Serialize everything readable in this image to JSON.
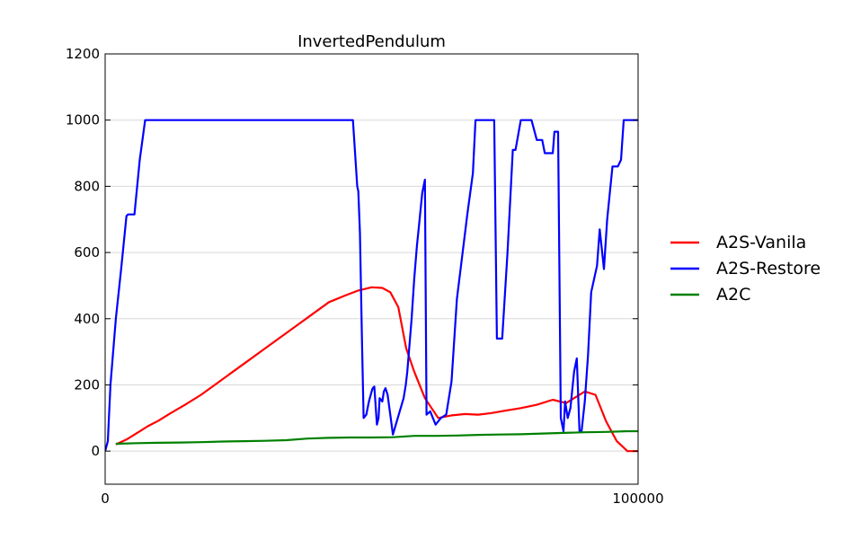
{
  "chart_data": {
    "type": "line",
    "title": "InvertedPendulum",
    "xlabel": "",
    "ylabel": "",
    "xlim": [
      0,
      100000
    ],
    "ylim": [
      -100,
      1200
    ],
    "xticks": [
      0,
      100000
    ],
    "xtick_labels": [
      "0",
      "100000"
    ],
    "yticks": [
      0,
      200,
      400,
      600,
      800,
      1000,
      1200
    ],
    "ytick_labels": [
      "0",
      "200",
      "400",
      "600",
      "800",
      "1000",
      "1200"
    ],
    "grid": "horizontal",
    "legend_position": "right",
    "series": [
      {
        "name": "A2S-Vanila",
        "color": "#ff0000",
        "x": [
          2000,
          4000,
          6000,
          8000,
          10000,
          12000,
          15000,
          18000,
          21000,
          24000,
          27000,
          30000,
          33000,
          36000,
          39000,
          42000,
          45000,
          47500,
          50000,
          52000,
          53500,
          55000,
          56500,
          58000,
          60000,
          62500,
          65000,
          67500,
          70000,
          72500,
          75000,
          78000,
          81000,
          84000,
          86500,
          88000,
          90000,
          92000,
          94000,
          96000,
          98000,
          100000
        ],
        "y": [
          20,
          35,
          55,
          75,
          92,
          112,
          140,
          170,
          205,
          240,
          275,
          310,
          345,
          380,
          415,
          450,
          470,
          485,
          495,
          493,
          480,
          435,
          310,
          240,
          160,
          100,
          108,
          112,
          110,
          115,
          122,
          130,
          140,
          155,
          145,
          160,
          180,
          170,
          90,
          30,
          0,
          0
        ]
      },
      {
        "name": "A2S-Restore",
        "color": "#0000ff",
        "x": [
          0,
          500,
          1000,
          2000,
          3000,
          4000,
          4300,
          5000,
          5500,
          6500,
          7500,
          20000,
          35000,
          46200,
          46500,
          47000,
          47300,
          47500,
          47800,
          48200,
          48500,
          49000,
          49500,
          50000,
          50200,
          50500,
          51000,
          51300,
          51500,
          52000,
          52300,
          52600,
          53000,
          54000,
          56000,
          56400,
          56700,
          57000,
          57500,
          58000,
          58500,
          59000,
          59500,
          60000,
          60300,
          61000,
          62000,
          63000,
          64000,
          65000,
          66000,
          68000,
          68500,
          69000,
          69500,
          71000,
          73000,
          73500,
          74500,
          75500,
          76500,
          77000,
          78000,
          80000,
          81000,
          82000,
          82500,
          84000,
          84300,
          84600,
          85000,
          85500,
          86000,
          86300,
          86800,
          87300,
          88000,
          88500,
          89000,
          89400,
          90000,
          90600,
          91200,
          92300,
          92800,
          93600,
          94200,
          95200,
          96200,
          96800,
          97300,
          100000
        ],
        "y": [
          0,
          30,
          200,
          400,
          550,
          710,
          715,
          715,
          715,
          880,
          1000,
          1000,
          1000,
          1000,
          1000,
          875,
          800,
          785,
          660,
          330,
          100,
          110,
          150,
          180,
          190,
          195,
          80,
          100,
          160,
          150,
          180,
          190,
          170,
          50,
          160,
          200,
          240,
          300,
          400,
          520,
          620,
          700,
          780,
          820,
          110,
          120,
          80,
          100,
          110,
          210,
          460,
          720,
          780,
          840,
          1000,
          1000,
          1000,
          340,
          340,
          600,
          910,
          910,
          1000,
          1000,
          940,
          940,
          900,
          900,
          965,
          965,
          965,
          100,
          60,
          150,
          100,
          130,
          240,
          280,
          60,
          60,
          150,
          290,
          480,
          560,
          670,
          550,
          700,
          860,
          860,
          880,
          1000,
          1000
        ]
      },
      {
        "name": "A2C",
        "color": "#008000",
        "x": [
          2000,
          6000,
          10000,
          14000,
          18000,
          22000,
          26000,
          30000,
          34000,
          38000,
          42000,
          46000,
          50000,
          54000,
          58000,
          62000,
          66000,
          70000,
          74000,
          78000,
          82000,
          86000,
          90000,
          94000,
          98000,
          100000
        ],
        "y": [
          22,
          24,
          25,
          26,
          27,
          29,
          30,
          31,
          33,
          38,
          40,
          41,
          41,
          42,
          46,
          46,
          47,
          49,
          50,
          51,
          53,
          55,
          57,
          58,
          60,
          60
        ]
      }
    ]
  }
}
